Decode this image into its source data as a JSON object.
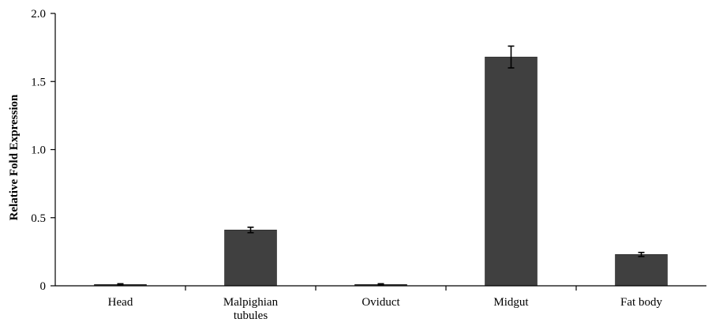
{
  "chart_data": {
    "type": "bar",
    "title": "",
    "xlabel": "",
    "ylabel": "Relative Fold Expression",
    "ylim": [
      0,
      2.0
    ],
    "yticks": [
      {
        "value": 0,
        "label": "0"
      },
      {
        "value": 0.5,
        "label": "0.5"
      },
      {
        "value": 1.0,
        "label": "1.0"
      },
      {
        "value": 1.5,
        "label": "1.5"
      },
      {
        "value": 2.0,
        "label": "2.0"
      }
    ],
    "categories": [
      [
        "Head"
      ],
      [
        "Malpighian",
        "tubules"
      ],
      [
        "Oviduct"
      ],
      [
        "Midgut"
      ],
      [
        "Fat body"
      ]
    ],
    "values": [
      0.01,
      0.41,
      0.01,
      1.68,
      0.23
    ],
    "errors": [
      0.005,
      0.02,
      0.005,
      0.08,
      0.015
    ],
    "grid": false,
    "legend": "none",
    "colors": {
      "bar": "#404040",
      "axis": "#000000"
    }
  }
}
